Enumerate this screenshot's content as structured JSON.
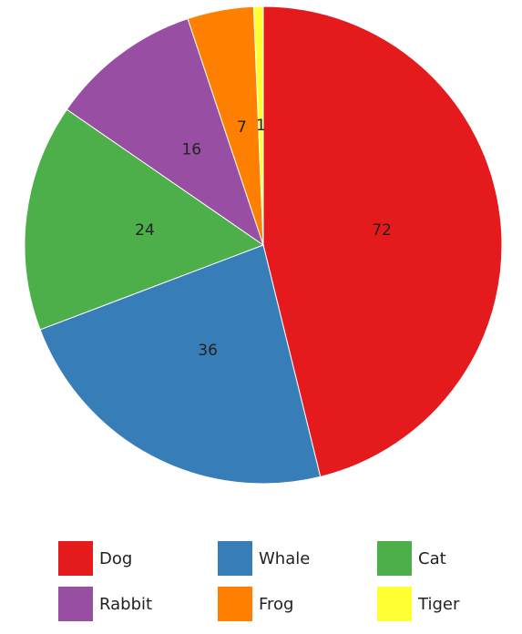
{
  "chart_data": {
    "type": "pie",
    "categories": [
      "Dog",
      "Whale",
      "Cat",
      "Rabbit",
      "Frog",
      "Tiger"
    ],
    "values": [
      72,
      36,
      24,
      16,
      7,
      1
    ],
    "colors": [
      "#e41a1c",
      "#377eb8",
      "#4daf4a",
      "#984ea3",
      "#ff7f00",
      "#ffff33"
    ],
    "title": "",
    "legend_position": "bottom",
    "start_angle_deg": 0,
    "direction": "clockwise"
  },
  "legend": {
    "items": [
      {
        "label": "Dog",
        "color": "#e41a1c"
      },
      {
        "label": "Whale",
        "color": "#377eb8"
      },
      {
        "label": "Cat",
        "color": "#4daf4a"
      },
      {
        "label": "Rabbit",
        "color": "#984ea3"
      },
      {
        "label": "Frog",
        "color": "#ff7f00"
      },
      {
        "label": "Tiger",
        "color": "#ffff33"
      }
    ]
  }
}
